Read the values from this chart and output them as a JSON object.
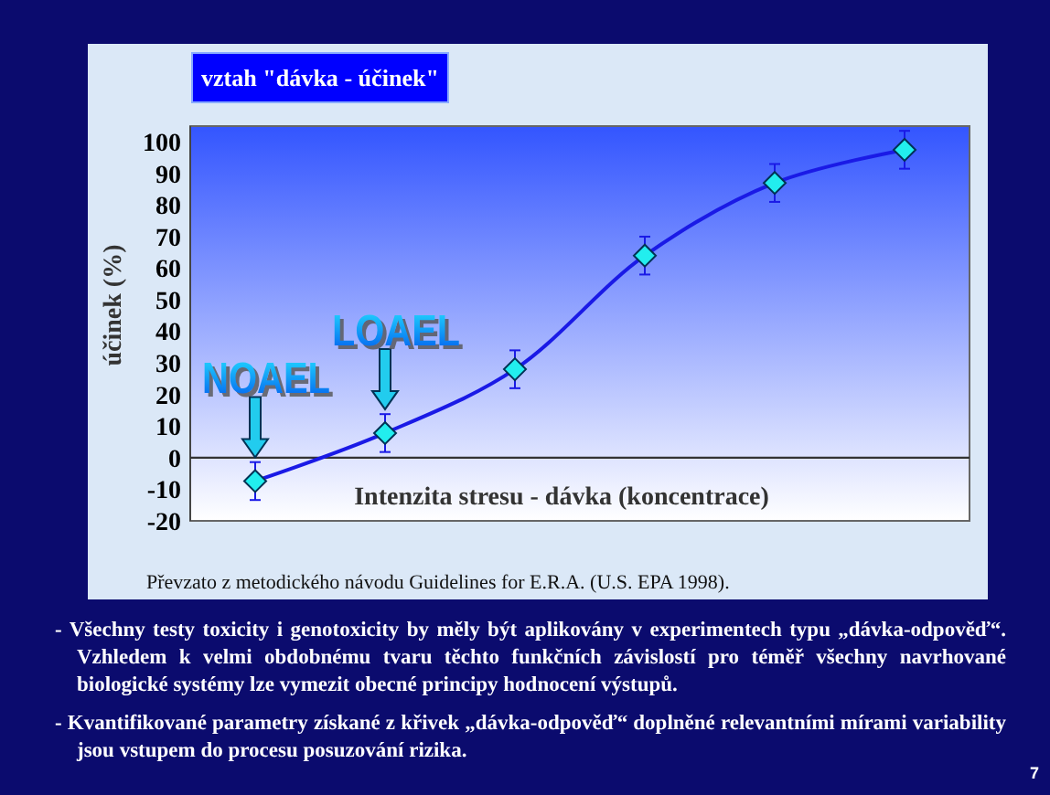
{
  "chart_data": {
    "type": "line",
    "title": "vztah \"dávka - účinek\"",
    "xlabel": "Intenzita stresu - dávka (koncentrace)",
    "ylabel": "účinek (%)",
    "categories": [
      null,
      null,
      null,
      null,
      null,
      null
    ],
    "series": [
      {
        "color": "#1a1ae6",
        "values": [
          -7.4,
          7.8,
          28,
          64,
          87,
          97.5
        ],
        "errors": [
          6,
          6,
          6,
          6,
          6,
          6
        ]
      }
    ],
    "marker": "diamond",
    "ylim": [
      -20,
      105
    ],
    "yticks": [
      -20,
      -10,
      0,
      10,
      20,
      30,
      40,
      50,
      60,
      70,
      80,
      90,
      100
    ],
    "tick_labels": "y",
    "annotations": [
      {
        "text": "NOAEL",
        "y": -7.4
      },
      {
        "text": "LOAEL",
        "y": 7.8
      },
      "Převzato z metodického návodu Guidelines for E.R.A. (U.S. EPA 1998).",
      "- Všechny testy toxicity i genotoxicity by měly být aplikovány v experimentech typu „dávka-odpověď“. Vzhledem k velmi obdobnému tvaru těchto funkčních závislostí pro téměř všechny navrhované biologické systémy lze vymezit obecné principy hodnocení výstupů.",
      "- Kvantifikované parametry získané z křivek „dávka-odpověď“ doplněné relevantními mírami variability jsou vstupem do procesu posuzování rizika.",
      "7"
    ]
  }
}
